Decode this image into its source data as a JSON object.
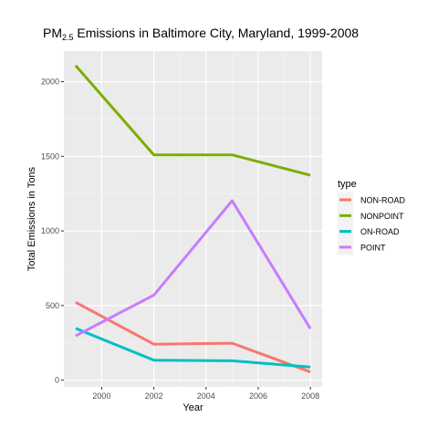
{
  "chart_data": {
    "type": "line",
    "title": {
      "prefix": "PM",
      "subscript": "2.5",
      "suffix": " Emissions in Baltimore City, Maryland, 1999-2008"
    },
    "xlabel": "Year",
    "ylabel": "Total Emissions in Tons",
    "x": [
      1999,
      2002,
      2005,
      2008
    ],
    "xlim": [
      1998.55,
      2008.45
    ],
    "ylim": [
      -45,
      2205
    ],
    "x_ticks": [
      2000,
      2002,
      2004,
      2006,
      2008
    ],
    "x_tick_labels": [
      "2000",
      "2002",
      "2004",
      "2006",
      "2008"
    ],
    "y_ticks": [
      0,
      500,
      1000,
      1500,
      2000
    ],
    "y_tick_labels": [
      "0",
      "500",
      "1000",
      "1500",
      "2000"
    ],
    "grid": true,
    "legend": {
      "title": "type",
      "position": "right"
    },
    "series": [
      {
        "name": "NON-ROAD",
        "color": "#F8766D",
        "values": [
          522,
          241,
          248,
          55
        ]
      },
      {
        "name": "NONPOINT",
        "color": "#7CAE00",
        "values": [
          2108,
          1510,
          1510,
          1373
        ]
      },
      {
        "name": "ON-ROAD",
        "color": "#00BFC4",
        "values": [
          347,
          134,
          130,
          88
        ]
      },
      {
        "name": "POINT",
        "color": "#C77CFF",
        "values": [
          297,
          570,
          1202,
          345
        ]
      }
    ]
  }
}
